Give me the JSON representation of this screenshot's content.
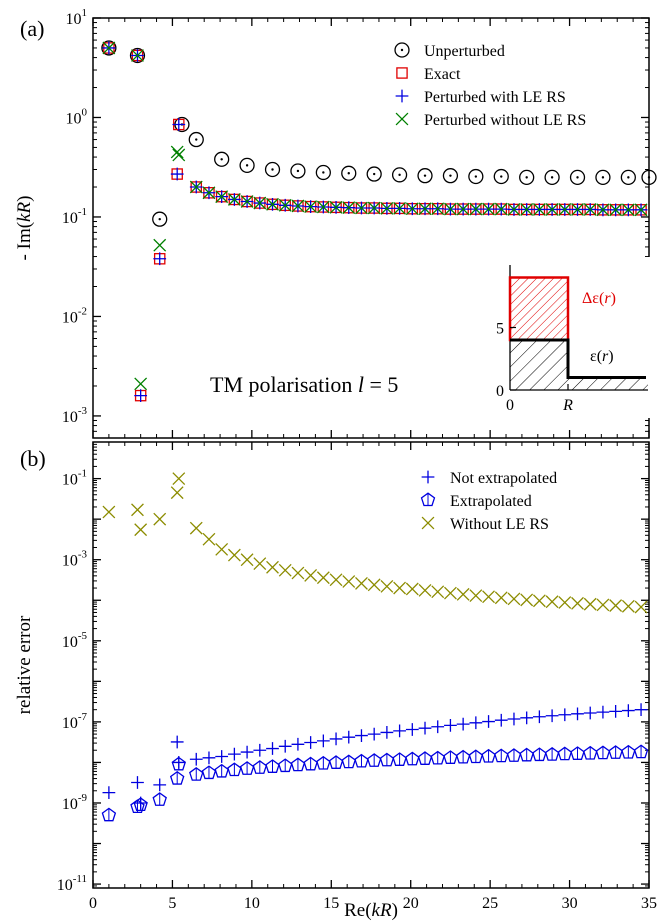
{
  "chart_data": [
    {
      "panel_label": "(a)",
      "type": "scatter",
      "xlabel": "Re(kR)",
      "ylabel": "- Im(kR)",
      "xlim": [
        0,
        35
      ],
      "ylim": [
        0.0006,
        10
      ],
      "yscale": "log",
      "x_ticks": [
        "0",
        "5",
        "10",
        "15",
        "20",
        "25",
        "30",
        "35"
      ],
      "y_ticks": [
        {
          "v": 10,
          "base": "10",
          "exp": "1"
        },
        {
          "v": 1,
          "base": "10",
          "exp": "0"
        },
        {
          "v": 0.1,
          "base": "10",
          "exp": "-1"
        },
        {
          "v": 0.01,
          "base": "10",
          "exp": "-2"
        },
        {
          "v": 0.001,
          "base": "10",
          "exp": "-3"
        }
      ],
      "annotation": {
        "pre": "TM polarisation  ",
        "var": "l",
        "post": " = 5"
      },
      "legend_position": "top-right",
      "series": [
        {
          "name": "Unperturbed",
          "marker": "circle",
          "color": "#000000",
          "x": [
            1.0,
            2.8,
            4.2,
            5.6,
            6.5,
            8.1,
            9.7,
            11.3,
            12.9,
            14.5,
            16.1,
            17.7,
            19.3,
            20.9,
            22.5,
            24.1,
            25.7,
            27.3,
            28.9,
            30.5,
            32.1,
            33.7,
            35.0
          ],
          "y": [
            5.0,
            4.2,
            0.095,
            0.85,
            0.6,
            0.38,
            0.33,
            0.3,
            0.29,
            0.28,
            0.275,
            0.27,
            0.265,
            0.26,
            0.26,
            0.255,
            0.255,
            0.25,
            0.25,
            0.25,
            0.25,
            0.25,
            0.25
          ]
        },
        {
          "name": "Exact",
          "marker": "square",
          "color": "#e00000",
          "x": [
            1.0,
            2.8,
            3.0,
            4.2,
            5.3,
            5.4,
            6.5,
            7.3,
            8.1,
            8.9,
            9.7,
            10.5,
            11.3,
            12.1,
            12.9,
            13.7,
            14.5,
            15.3,
            16.1,
            16.9,
            17.7,
            18.5,
            19.3,
            20.1,
            20.9,
            21.7,
            22.5,
            23.3,
            24.1,
            24.9,
            25.7,
            26.5,
            27.3,
            28.1,
            28.9,
            29.7,
            30.5,
            31.3,
            32.1,
            32.9,
            33.7,
            34.5
          ],
          "y": [
            5.0,
            4.2,
            0.0016,
            0.038,
            0.27,
            0.85,
            0.2,
            0.175,
            0.16,
            0.15,
            0.143,
            0.138,
            0.134,
            0.131,
            0.129,
            0.127,
            0.126,
            0.125,
            0.124,
            0.123,
            0.123,
            0.122,
            0.122,
            0.121,
            0.121,
            0.121,
            0.12,
            0.12,
            0.12,
            0.12,
            0.12,
            0.119,
            0.119,
            0.119,
            0.119,
            0.119,
            0.119,
            0.119,
            0.118,
            0.118,
            0.118,
            0.118
          ]
        },
        {
          "name": "Perturbed with LE RS",
          "marker": "plus",
          "color": "#0000e0",
          "x": [
            1.0,
            2.8,
            3.0,
            4.2,
            5.3,
            5.4,
            6.5,
            7.3,
            8.1,
            8.9,
            9.7,
            10.5,
            11.3,
            12.1,
            12.9,
            13.7,
            14.5,
            15.3,
            16.1,
            16.9,
            17.7,
            18.5,
            19.3,
            20.1,
            20.9,
            21.7,
            22.5,
            23.3,
            24.1,
            24.9,
            25.7,
            26.5,
            27.3,
            28.1,
            28.9,
            29.7,
            30.5,
            31.3,
            32.1,
            32.9,
            33.7,
            34.5
          ],
          "y": [
            5.0,
            4.2,
            0.0016,
            0.038,
            0.27,
            0.85,
            0.2,
            0.175,
            0.16,
            0.15,
            0.143,
            0.138,
            0.134,
            0.131,
            0.129,
            0.127,
            0.126,
            0.125,
            0.124,
            0.123,
            0.123,
            0.122,
            0.122,
            0.121,
            0.121,
            0.121,
            0.12,
            0.12,
            0.12,
            0.12,
            0.12,
            0.119,
            0.119,
            0.119,
            0.119,
            0.119,
            0.119,
            0.119,
            0.118,
            0.118,
            0.118,
            0.118
          ]
        },
        {
          "name": "Perturbed without LE RS",
          "marker": "x",
          "color": "#008000",
          "x": [
            1.0,
            2.8,
            3.0,
            4.2,
            5.3,
            5.4,
            6.5,
            7.3,
            8.1,
            8.9,
            9.7,
            10.5,
            11.3,
            12.1,
            12.9,
            13.7,
            14.5,
            15.3,
            16.1,
            16.9,
            17.7,
            18.5,
            19.3,
            20.1,
            20.9,
            21.7,
            22.5,
            23.3,
            24.1,
            24.9,
            25.7,
            26.5,
            27.3,
            28.1,
            28.9,
            29.7,
            30.5,
            31.3,
            32.1,
            32.9,
            33.7,
            34.5
          ],
          "y": [
            5.0,
            4.2,
            0.0021,
            0.052,
            0.45,
            0.42,
            0.2,
            0.175,
            0.16,
            0.15,
            0.143,
            0.138,
            0.134,
            0.131,
            0.129,
            0.127,
            0.126,
            0.125,
            0.124,
            0.123,
            0.123,
            0.122,
            0.122,
            0.121,
            0.121,
            0.121,
            0.12,
            0.12,
            0.12,
            0.12,
            0.12,
            0.119,
            0.119,
            0.119,
            0.119,
            0.119,
            0.119,
            0.119,
            0.118,
            0.118,
            0.118,
            0.118
          ]
        }
      ],
      "inset": {
        "type": "step-profile",
        "x_ticks": [
          "0"
        ],
        "x_symbol": "R",
        "y_ticks": [
          "0",
          "5"
        ],
        "ylim": [
          0,
          10
        ],
        "base_label": {
          "pre": "ε(",
          "var": "r",
          "post": ")"
        },
        "delta_label": {
          "pre": "Δε(",
          "var": "r",
          "post": ")"
        },
        "eps_inside": 4,
        "eps_outside": 1,
        "delta_eps": 5
      }
    },
    {
      "panel_label": "(b)",
      "type": "scatter",
      "xlabel": "Re(kR)",
      "ylabel": "relative error",
      "xlim": [
        0,
        35
      ],
      "ylim": [
        8e-12,
        0.8
      ],
      "yscale": "log",
      "x_ticks": [
        "0",
        "5",
        "10",
        "15",
        "20",
        "25",
        "30",
        "35"
      ],
      "y_ticks": [
        {
          "v": 0.1,
          "base": "10",
          "exp": "-1"
        },
        {
          "v": 0.001,
          "base": "10",
          "exp": "-3"
        },
        {
          "v": 1e-05,
          "base": "10",
          "exp": "-5"
        },
        {
          "v": 1e-07,
          "base": "10",
          "exp": "-7"
        },
        {
          "v": 1e-09,
          "base": "10",
          "exp": "-9"
        },
        {
          "v": 1e-11,
          "base": "10",
          "exp": "-11"
        }
      ],
      "legend_position": "top-right",
      "series": [
        {
          "name": "Not extrapolated",
          "marker": "plus",
          "color": "#0000e0",
          "x": [
            1.0,
            2.8,
            3.0,
            4.2,
            5.3,
            5.4,
            6.5,
            7.3,
            8.1,
            8.9,
            9.7,
            10.5,
            11.3,
            12.1,
            12.9,
            13.7,
            14.5,
            15.3,
            16.1,
            16.9,
            17.7,
            18.5,
            19.3,
            20.1,
            20.9,
            21.7,
            22.5,
            23.3,
            24.1,
            24.9,
            25.7,
            26.5,
            27.3,
            28.1,
            28.9,
            29.7,
            30.5,
            31.3,
            32.1,
            32.9,
            33.7,
            34.5
          ],
          "y": [
            1.8e-09,
            3.2e-09,
            1e-09,
            2.8e-09,
            3.2e-08,
            1e-08,
            1.2e-08,
            1.3e-08,
            1.4e-08,
            1.6e-08,
            1.8e-08,
            2e-08,
            2.2e-08,
            2.5e-08,
            2.8e-08,
            3.1e-08,
            3.4e-08,
            3.8e-08,
            4.2e-08,
            4.6e-08,
            5e-08,
            5.5e-08,
            6e-08,
            6.5e-08,
            7e-08,
            7.6e-08,
            8.2e-08,
            8.8e-08,
            9.5e-08,
            1.02e-07,
            1.1e-07,
            1.18e-07,
            1.26e-07,
            1.34e-07,
            1.42e-07,
            1.5e-07,
            1.58e-07,
            1.66e-07,
            1.74e-07,
            1.82e-07,
            1.9e-07,
            2e-07
          ]
        },
        {
          "name": "Extrapolated",
          "marker": "pentagon",
          "color": "#0000e0",
          "x": [
            1.0,
            2.8,
            3.0,
            4.2,
            5.3,
            5.4,
            6.5,
            7.3,
            8.1,
            8.9,
            9.7,
            10.5,
            11.3,
            12.1,
            12.9,
            13.7,
            14.5,
            15.3,
            16.1,
            16.9,
            17.7,
            18.5,
            19.3,
            20.1,
            20.9,
            21.7,
            22.5,
            23.3,
            24.1,
            24.9,
            25.7,
            26.5,
            27.3,
            28.1,
            28.9,
            29.7,
            30.5,
            31.3,
            32.1,
            32.9,
            33.7,
            34.5
          ],
          "y": [
            5e-10,
            8e-10,
            9e-10,
            1.2e-09,
            4e-09,
            9e-09,
            5e-09,
            5.5e-09,
            6e-09,
            6.5e-09,
            7e-09,
            7.4e-09,
            7.8e-09,
            8.2e-09,
            8.6e-09,
            9e-09,
            9.4e-09,
            9.8e-09,
            1.02e-08,
            1.06e-08,
            1.1e-08,
            1.13e-08,
            1.16e-08,
            1.2e-08,
            1.23e-08,
            1.26e-08,
            1.3e-08,
            1.33e-08,
            1.36e-08,
            1.4e-08,
            1.43e-08,
            1.46e-08,
            1.5e-08,
            1.53e-08,
            1.56e-08,
            1.6e-08,
            1.63e-08,
            1.66e-08,
            1.7e-08,
            1.73e-08,
            1.76e-08,
            1.8e-08
          ]
        },
        {
          "name": "Without LE RS",
          "marker": "x",
          "color": "#8c8c00",
          "x": [
            1.0,
            2.8,
            3.0,
            4.2,
            5.3,
            5.4,
            6.5,
            7.3,
            8.1,
            8.9,
            9.7,
            10.5,
            11.3,
            12.1,
            12.9,
            13.7,
            14.5,
            15.3,
            16.1,
            16.9,
            17.7,
            18.5,
            19.3,
            20.1,
            20.9,
            21.7,
            22.5,
            23.3,
            24.1,
            24.9,
            25.7,
            26.5,
            27.3,
            28.1,
            28.9,
            29.7,
            30.5,
            31.3,
            32.1,
            32.9,
            33.7,
            34.5
          ],
          "y": [
            0.015,
            0.017,
            0.0055,
            0.01,
            0.045,
            0.1,
            0.006,
            0.0032,
            0.0018,
            0.0013,
            0.001,
            0.0008,
            0.00065,
            0.00055,
            0.00047,
            0.00041,
            0.00036,
            0.00032,
            0.00029,
            0.00026,
            0.00024,
            0.00022,
            0.0002,
            0.00019,
            0.000175,
            0.000162,
            0.00015,
            0.00014,
            0.00013,
            0.000122,
            0.000115,
            0.000108,
            0.000102,
            9.7e-05,
            9.2e-05,
            8.8e-05,
            8.4e-05,
            8e-05,
            7.7e-05,
            7.4e-05,
            7.1e-05,
            6.8e-05
          ]
        }
      ]
    }
  ],
  "xlabel_shared": {
    "pre": "Re(",
    "var": "kR",
    "post": ")"
  },
  "ylabel_a": {
    "pre": "- Im(",
    "var": "kR",
    "post": ")"
  }
}
